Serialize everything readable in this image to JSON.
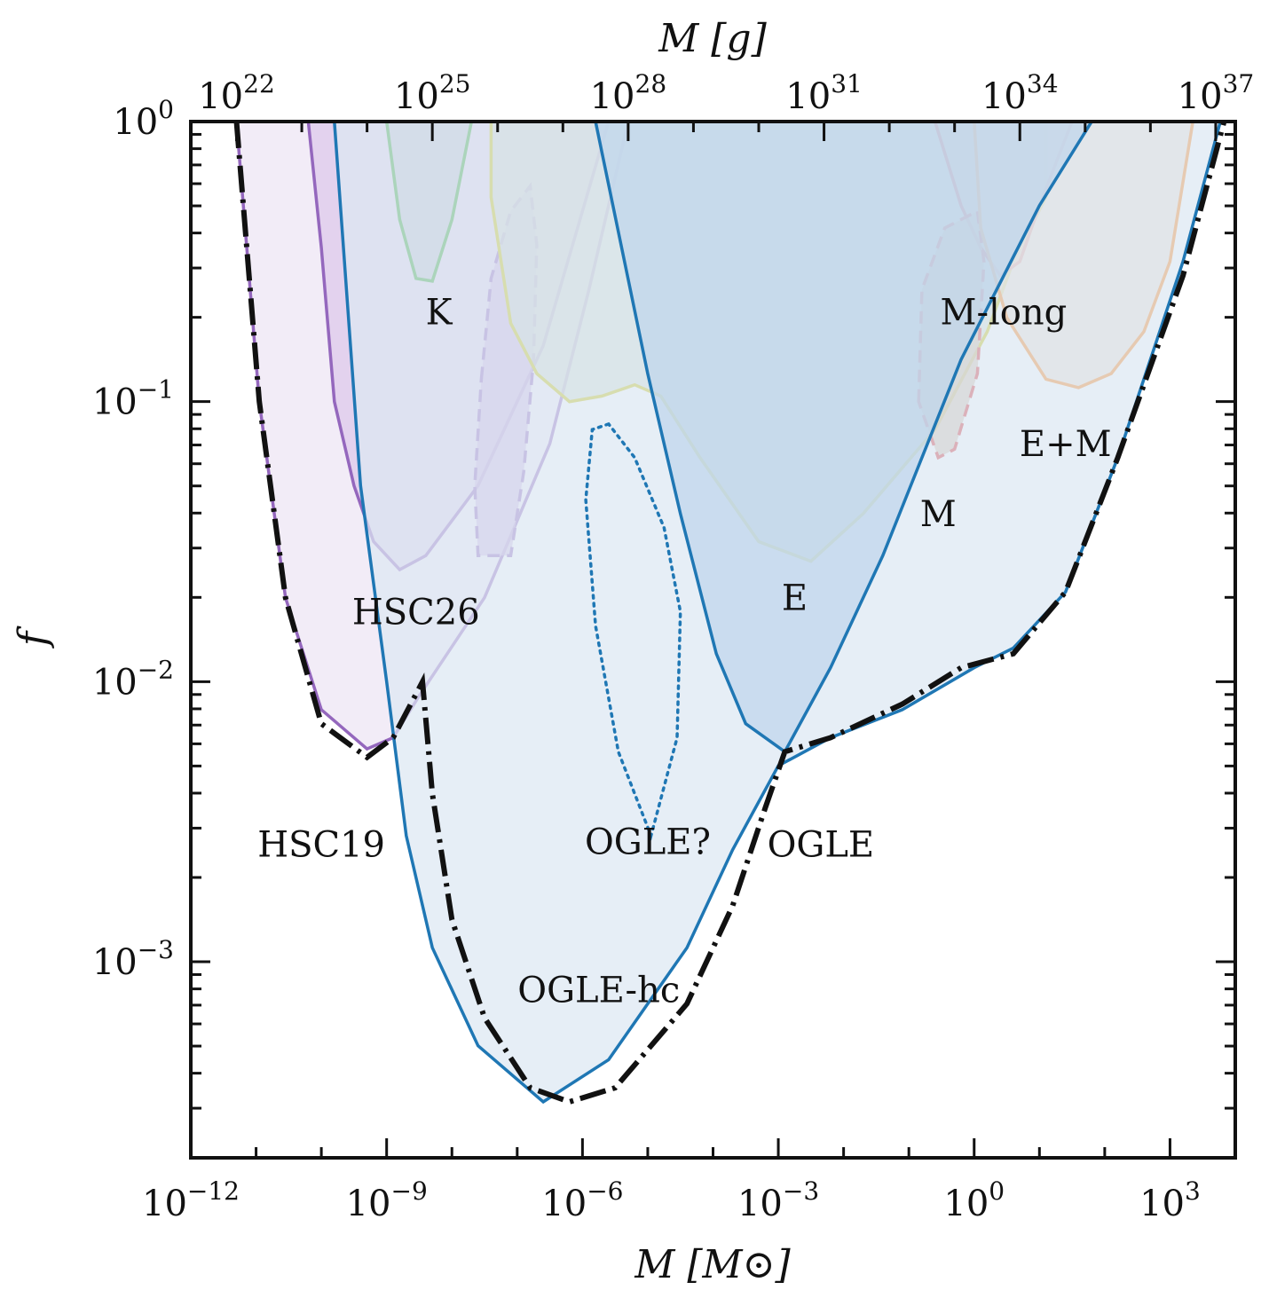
{
  "chart_data": {
    "type": "area",
    "xlabel": "M [M⊙]",
    "x2label": "M [g]",
    "ylabel": "f",
    "xscale": "log",
    "yscale": "log",
    "xlim_log10": [
      -12,
      4
    ],
    "ylim_log10": [
      -3.7,
      0
    ],
    "x_ticks": [
      {
        "base": "10",
        "exp": "−12",
        "log": -12
      },
      {
        "base": "10",
        "exp": "−9",
        "log": -9
      },
      {
        "base": "10",
        "exp": "−6",
        "log": -6
      },
      {
        "base": "10",
        "exp": "−3",
        "log": -3
      },
      {
        "base": "10",
        "exp": "0",
        "log": 0
      },
      {
        "base": "10",
        "exp": "3",
        "log": 3
      }
    ],
    "x2_ticks": [
      {
        "base": "10",
        "exp": "22",
        "log_g": 22
      },
      {
        "base": "10",
        "exp": "25",
        "log_g": 25
      },
      {
        "base": "10",
        "exp": "28",
        "log_g": 28
      },
      {
        "base": "10",
        "exp": "31",
        "log_g": 31
      },
      {
        "base": "10",
        "exp": "34",
        "log_g": 34
      },
      {
        "base": "10",
        "exp": "37",
        "log_g": 37
      }
    ],
    "y_ticks": [
      {
        "base": "10",
        "exp": "0",
        "log": 0
      },
      {
        "base": "10",
        "exp": "−1",
        "log": -1
      },
      {
        "base": "10",
        "exp": "−2",
        "log": -2
      },
      {
        "base": "10",
        "exp": "−3",
        "log": -3
      }
    ],
    "regions": [
      {
        "label": "HSC19",
        "color": "#9467bd",
        "fill": "#ede4f4",
        "line": "solid",
        "points": [
          [
            -11.3,
            0
          ],
          [
            -10.95,
            -1.0
          ],
          [
            -10.55,
            -1.7
          ],
          [
            -10.0,
            -2.1
          ],
          [
            -9.3,
            -2.24
          ],
          [
            -8.9,
            -2.2
          ],
          [
            -8.5,
            -2.05
          ],
          [
            -7.5,
            -1.7
          ],
          [
            -6.5,
            -1.15
          ],
          [
            -5.9,
            -0.6
          ],
          [
            -5.3,
            0
          ]
        ]
      },
      {
        "label": "HSC26",
        "color": "#9467bd",
        "fill": "#dcc8ea",
        "line": "solid",
        "points": [
          [
            -10.2,
            0
          ],
          [
            -10.0,
            -0.45
          ],
          [
            -9.8,
            -1.0
          ],
          [
            -9.5,
            -1.3
          ],
          [
            -9.2,
            -1.5
          ],
          [
            -8.8,
            -1.6
          ],
          [
            -8.4,
            -1.55
          ],
          [
            -7.6,
            -1.3
          ],
          [
            -6.6,
            -0.8
          ],
          [
            -5.6,
            0
          ]
        ]
      },
      {
        "label": "HSC26 (dashed)",
        "color": "#9467bd",
        "fill": "#c8a9dc",
        "line": "dashed",
        "points": [
          [
            -7.55,
            -0.92
          ],
          [
            -7.4,
            -0.56
          ],
          [
            -7.1,
            -0.32
          ],
          [
            -6.8,
            -0.23
          ],
          [
            -6.7,
            -0.44
          ],
          [
            -6.75,
            -0.85
          ],
          [
            -6.9,
            -1.25
          ],
          [
            -7.1,
            -1.55
          ],
          [
            -7.4,
            -1.55
          ],
          [
            -7.6,
            -1.55
          ],
          [
            -7.65,
            -1.3
          ],
          [
            -7.55,
            -0.92
          ]
        ]
      },
      {
        "label": "K",
        "color": "#2ca02c",
        "fill": "#aeb8c6",
        "line": "solid",
        "points": [
          [
            -9.0,
            0
          ],
          [
            -8.8,
            -0.35
          ],
          [
            -8.55,
            -0.56
          ],
          [
            -8.3,
            -0.57
          ],
          [
            -8.0,
            -0.35
          ],
          [
            -7.7,
            0
          ]
        ]
      },
      {
        "label": "E",
        "color": "#c9c100",
        "fill": "#c7d4c2",
        "line": "solid",
        "points": [
          [
            -7.4,
            -0.27
          ],
          [
            -7.1,
            -0.72
          ],
          [
            -6.7,
            -0.9
          ],
          [
            -6.2,
            -1.0
          ],
          [
            -5.7,
            -0.98
          ],
          [
            -5.2,
            -0.94
          ],
          [
            -4.8,
            -0.98
          ],
          [
            -4.2,
            -1.2
          ],
          [
            -3.3,
            -1.5
          ],
          [
            -2.5,
            -1.57
          ],
          [
            -1.7,
            -1.4
          ],
          [
            -0.6,
            -1.1
          ],
          [
            0.2,
            -0.75
          ],
          [
            0.6,
            -0.5
          ],
          [
            1.1,
            -0.27
          ],
          [
            1.1,
            0
          ],
          [
            -7.4,
            0
          ]
        ]
      },
      {
        "label": "M-long",
        "color": "#d62728",
        "fill": "#d9bfa3",
        "line": "solid",
        "points": [
          [
            -0.6,
            0
          ],
          [
            -0.2,
            -0.3
          ],
          [
            0.1,
            -0.45
          ],
          [
            0.4,
            -0.55
          ],
          [
            0.7,
            -0.5
          ],
          [
            1.0,
            -0.3
          ],
          [
            1.5,
            0
          ]
        ]
      },
      {
        "label": "M-long (dashed)",
        "color": "#d62728",
        "fill": "#c9a98f",
        "line": "dashed",
        "points": [
          [
            -0.85,
            -1.0
          ],
          [
            -0.8,
            -0.6
          ],
          [
            -0.45,
            -0.38
          ],
          [
            0.05,
            -0.32
          ],
          [
            0.15,
            -0.5
          ],
          [
            0.05,
            -0.9
          ],
          [
            -0.3,
            -1.17
          ],
          [
            -0.55,
            -1.2
          ],
          [
            -0.85,
            -1.0
          ]
        ]
      },
      {
        "label": "E+M",
        "color": "#ff7f0e",
        "fill": "#ead8c5",
        "line": "solid",
        "points": [
          [
            0.0,
            0
          ],
          [
            0.1,
            -0.38
          ],
          [
            0.5,
            -0.7
          ],
          [
            1.1,
            -0.92
          ],
          [
            1.6,
            -0.95
          ],
          [
            2.1,
            -0.9
          ],
          [
            2.6,
            -0.75
          ],
          [
            3.0,
            -0.5
          ],
          [
            3.35,
            0
          ]
        ]
      },
      {
        "label": "OGLE-hc",
        "color": "#1f77b4",
        "fill": "#dce8f3",
        "line": "solid",
        "points": [
          [
            -9.8,
            0
          ],
          [
            -9.4,
            -1.3
          ],
          [
            -9.0,
            -2.0
          ],
          [
            -8.7,
            -2.55
          ],
          [
            -8.3,
            -2.95
          ],
          [
            -7.6,
            -3.3
          ],
          [
            -6.6,
            -3.5
          ],
          [
            -5.6,
            -3.35
          ],
          [
            -4.4,
            -2.95
          ],
          [
            -3.7,
            -2.6
          ],
          [
            -3.0,
            -2.3
          ],
          [
            -2.2,
            -2.2
          ],
          [
            -1.1,
            -2.1
          ],
          [
            0.0,
            -1.95
          ],
          [
            0.6,
            -1.88
          ],
          [
            1.4,
            -1.68
          ],
          [
            2.2,
            -1.2
          ],
          [
            3.2,
            -0.5
          ],
          [
            4.0,
            0.2
          ],
          [
            4.0,
            0
          ]
        ]
      },
      {
        "label": "OGLE",
        "color": "#1f77b4",
        "fill": "#bfd6ec",
        "line": "solid",
        "points": [
          [
            -5.8,
            0
          ],
          [
            -5.4,
            -0.45
          ],
          [
            -5.0,
            -0.9
          ],
          [
            -4.5,
            -1.4
          ],
          [
            -3.95,
            -1.9
          ],
          [
            -3.5,
            -2.15
          ],
          [
            -2.9,
            -2.25
          ],
          [
            -2.2,
            -1.95
          ],
          [
            -1.4,
            -1.55
          ],
          [
            -0.2,
            -0.85
          ],
          [
            1.0,
            -0.3
          ],
          [
            1.8,
            0
          ]
        ]
      },
      {
        "label": "OGLE?",
        "color": "#1f77b4",
        "fill": "none",
        "line": "dotted",
        "points": [
          [
            -5.6,
            -1.08
          ],
          [
            -5.85,
            -1.1
          ],
          [
            -5.95,
            -1.35
          ],
          [
            -5.8,
            -1.8
          ],
          [
            -5.45,
            -2.25
          ],
          [
            -4.95,
            -2.55
          ],
          [
            -4.55,
            -2.2
          ],
          [
            -4.5,
            -1.75
          ],
          [
            -4.75,
            -1.45
          ],
          [
            -5.2,
            -1.2
          ],
          [
            -5.6,
            -1.08
          ]
        ]
      }
    ],
    "envelope": [
      [
        -11.3,
        0
      ],
      [
        -10.95,
        -1.0
      ],
      [
        -10.55,
        -1.7
      ],
      [
        -10.0,
        -2.15
      ],
      [
        -9.3,
        -2.27
      ],
      [
        -8.9,
        -2.2
      ],
      [
        -8.45,
        -2.0
      ],
      [
        -8.3,
        -2.4
      ],
      [
        -8.0,
        -2.85
      ],
      [
        -7.5,
        -3.2
      ],
      [
        -6.8,
        -3.45
      ],
      [
        -6.2,
        -3.5
      ],
      [
        -5.5,
        -3.45
      ],
      [
        -4.4,
        -3.15
      ],
      [
        -3.7,
        -2.8
      ],
      [
        -3.2,
        -2.45
      ],
      [
        -2.9,
        -2.25
      ],
      [
        -2.2,
        -2.2
      ],
      [
        -1.1,
        -2.08
      ],
      [
        -0.2,
        -1.95
      ],
      [
        0.6,
        -1.9
      ],
      [
        1.4,
        -1.68
      ],
      [
        2.2,
        -1.2
      ],
      [
        3.2,
        -0.55
      ],
      [
        4.0,
        0.15
      ]
    ],
    "annotations": [
      {
        "text": "K",
        "x": -8.2,
        "y": -0.68
      },
      {
        "text": "M-long",
        "x": 0.45,
        "y": -0.68
      },
      {
        "text": "E+M",
        "x": 1.4,
        "y": -1.15
      },
      {
        "text": "M",
        "x": -0.55,
        "y": -1.4
      },
      {
        "text": "E",
        "x": -2.75,
        "y": -1.7
      },
      {
        "text": "HSC26",
        "x": -8.55,
        "y": -1.75
      },
      {
        "text": "OGLE?",
        "x": -5.0,
        "y": -2.57
      },
      {
        "text": "HSC19",
        "x": -10.0,
        "y": -2.58
      },
      {
        "text": "OGLE",
        "x": -2.35,
        "y": -2.58
      },
      {
        "text": "OGLE-hc",
        "x": -5.75,
        "y": -3.1
      }
    ]
  }
}
